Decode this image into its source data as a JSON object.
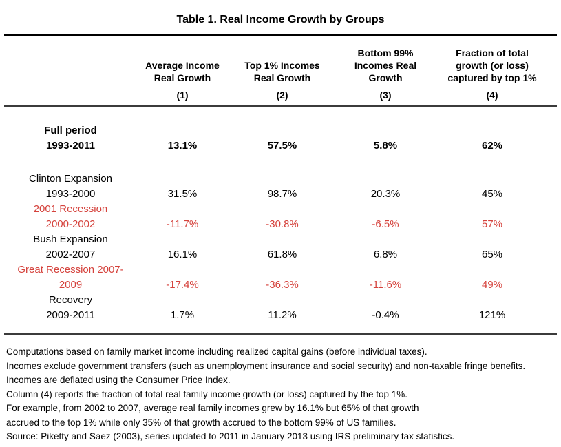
{
  "title": "Table 1. Real Income Growth by Groups",
  "colors": {
    "negative_red": "#d5423c",
    "text": "#000000",
    "rule_dark": "#3b3b3b"
  },
  "columns": [
    {
      "lines": [
        "Average Income",
        "Real Growth"
      ],
      "number": "(1)"
    },
    {
      "lines": [
        "Top 1% Incomes",
        "Real Growth"
      ],
      "number": "(2)"
    },
    {
      "lines": [
        "Bottom 99%",
        "Incomes Real",
        "Growth"
      ],
      "number": "(3)"
    },
    {
      "lines": [
        "Fraction of total",
        "growth (or loss)",
        "captured by top 1%"
      ],
      "number": "(4)"
    }
  ],
  "rows": [
    {
      "label_line1": "Full period",
      "label_line2": "1993-2011",
      "values": [
        "13.1%",
        "57.5%",
        "5.8%",
        "62%"
      ],
      "emphasis": "bold",
      "color": "black"
    },
    {
      "label_line1": "Clinton Expansion",
      "label_line2": "1993-2000",
      "values": [
        "31.5%",
        "98.7%",
        "20.3%",
        "45%"
      ],
      "emphasis": "normal",
      "color": "black"
    },
    {
      "label_line1": "2001 Recession",
      "label_line2": "2000-2002",
      "values": [
        "-11.7%",
        "-30.8%",
        "-6.5%",
        "57%"
      ],
      "emphasis": "normal",
      "color": "red"
    },
    {
      "label_line1": "Bush Expansion",
      "label_line2": "2002-2007",
      "values": [
        "16.1%",
        "61.8%",
        "6.8%",
        "65%"
      ],
      "emphasis": "normal",
      "color": "black"
    },
    {
      "label_line1": "Great Recession 2007-",
      "label_line2": "2009",
      "values": [
        "-17.4%",
        "-36.3%",
        "-11.6%",
        "49%"
      ],
      "emphasis": "normal",
      "color": "red"
    },
    {
      "label_line1": "Recovery",
      "label_line2": "2009-2011",
      "values": [
        "1.7%",
        "11.2%",
        "-0.4%",
        "121%"
      ],
      "emphasis": "normal",
      "color": "black"
    }
  ],
  "footnotes": [
    "Computations based on family market income including realized capital gains (before individual taxes).",
    "Incomes exclude government transfers (such as unemployment insurance and social security) and non-taxable fringe benefits.",
    "Incomes are deflated using the Consumer Price Index.",
    "Column (4) reports the fraction of total real family income growth (or loss) captured by the top 1%.",
    "For example, from 2002 to 2007, average real family incomes grew by 16.1% but 65% of that growth",
    "accrued to the top 1% while only 35% of that growth accrued to the bottom 99% of US families.",
    "Source: Piketty and Saez (2003), series updated to 2011 in January 2013 using IRS preliminary tax statistics."
  ]
}
